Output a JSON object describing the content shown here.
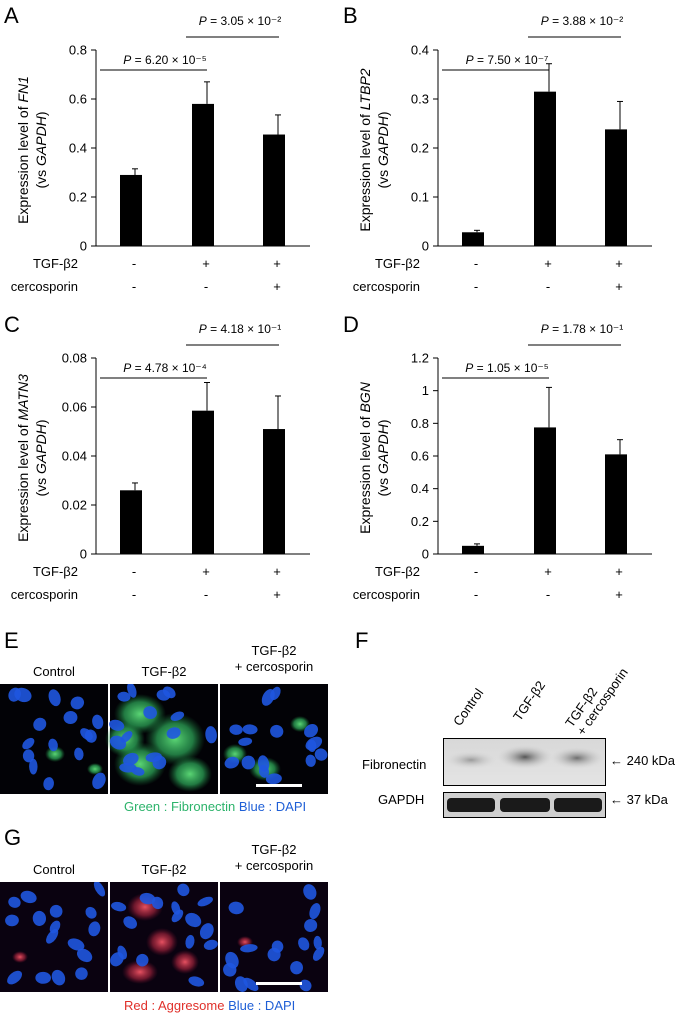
{
  "panels": {
    "a": "A",
    "b": "B",
    "c": "C",
    "d": "D",
    "e": "E",
    "f": "F",
    "g": "G"
  },
  "chart_data": [
    {
      "type": "bar",
      "panel": "A",
      "categories": [
        "control",
        "TGF-β2",
        "TGF-β2 + cercosporin"
      ],
      "values": [
        0.29,
        0.58,
        0.455
      ],
      "errors": [
        0.025,
        0.09,
        0.08
      ],
      "ylabel_prefix": "Expression level of ",
      "ylabel_gene": "FN1",
      "ylabel_line2_prefix": "(vs ",
      "ylabel_line2_gene": "GAPDH",
      "ylabel_line2_suffix": ")",
      "ylim": [
        0,
        0.8
      ],
      "yticks": [
        "0",
        "0.2",
        "0.4",
        "0.6",
        "0.8"
      ],
      "ytick_values": [
        0,
        0.2,
        0.4,
        0.6,
        0.8
      ],
      "pvalues": [
        "P = 6.20 × 10⁻⁵",
        "P = 3.05 × 10⁻²"
      ],
      "treatment_rows": [
        {
          "label": "TGF-β2",
          "marks": [
            "-",
            "+",
            "+"
          ]
        },
        {
          "label": "cercosporin",
          "marks": [
            "-",
            "-",
            "+"
          ]
        }
      ]
    },
    {
      "type": "bar",
      "panel": "B",
      "categories": [
        "control",
        "TGF-β2",
        "TGF-β2 + cercosporin"
      ],
      "values": [
        0.028,
        0.315,
        0.238
      ],
      "errors": [
        0.004,
        0.057,
        0.057
      ],
      "ylabel_prefix": "Expression level of ",
      "ylabel_gene": "LTBP2",
      "ylabel_line2_prefix": "(vs ",
      "ylabel_line2_gene": "GAPDH",
      "ylabel_line2_suffix": ")",
      "ylim": [
        0,
        0.4
      ],
      "yticks": [
        "0",
        "0.1",
        "0.2",
        "0.3",
        "0.4"
      ],
      "ytick_values": [
        0,
        0.1,
        0.2,
        0.3,
        0.4
      ],
      "pvalues": [
        "P = 7.50 × 10⁻⁷",
        "P = 3.88 × 10⁻²"
      ],
      "treatment_rows": [
        {
          "label": "TGF-β2",
          "marks": [
            "-",
            "+",
            "+"
          ]
        },
        {
          "label": "cercosporin",
          "marks": [
            "-",
            "-",
            "+"
          ]
        }
      ]
    },
    {
      "type": "bar",
      "panel": "C",
      "categories": [
        "control",
        "TGF-β2",
        "TGF-β2 + cercosporin"
      ],
      "values": [
        0.026,
        0.0585,
        0.051
      ],
      "errors": [
        0.003,
        0.0115,
        0.0135
      ],
      "ylabel_prefix": "Expression level of ",
      "ylabel_gene": "MATN3",
      "ylabel_line2_prefix": "(vs ",
      "ylabel_line2_gene": "GAPDH",
      "ylabel_line2_suffix": ")",
      "ylim": [
        0,
        0.08
      ],
      "yticks": [
        "0",
        "0.02",
        "0.04",
        "0.06",
        "0.08"
      ],
      "ytick_values": [
        0,
        0.02,
        0.04,
        0.06,
        0.08
      ],
      "pvalues": [
        "P = 4.78 × 10⁻⁴",
        "P = 4.18 × 10⁻¹"
      ],
      "treatment_rows": [
        {
          "label": "TGF-β2",
          "marks": [
            "-",
            "+",
            "+"
          ]
        },
        {
          "label": "cercosporin",
          "marks": [
            "-",
            "-",
            "+"
          ]
        }
      ]
    },
    {
      "type": "bar",
      "panel": "D",
      "categories": [
        "control",
        "TGF-β2",
        "TGF-β2 + cercosporin"
      ],
      "values": [
        0.05,
        0.775,
        0.61
      ],
      "errors": [
        0.012,
        0.245,
        0.09
      ],
      "ylabel_prefix": "Expression level of ",
      "ylabel_gene": "BGN",
      "ylabel_line2_prefix": "(vs ",
      "ylabel_line2_gene": "GAPDH",
      "ylabel_line2_suffix": ")",
      "ylim": [
        0,
        1.2
      ],
      "yticks": [
        "0",
        "0.2",
        "0.4",
        "0.6",
        "0.8",
        "1",
        "1.2"
      ],
      "ytick_values": [
        0,
        0.2,
        0.4,
        0.6,
        0.8,
        1.0,
        1.2
      ],
      "pvalues": [
        "P = 1.05 × 10⁻⁵",
        "P = 1.78 × 10⁻¹"
      ],
      "treatment_rows": [
        {
          "label": "TGF-β2",
          "marks": [
            "-",
            "+",
            "+"
          ]
        },
        {
          "label": "cercosporin",
          "marks": [
            "-",
            "-",
            "+"
          ]
        }
      ]
    }
  ],
  "panel_e": {
    "labels": [
      "Control",
      "TGF-β2",
      "TGF-β2\n+ cercosporin"
    ],
    "caption_green": "Green : Fibronectin",
    "caption_blue": "Blue : DAPI",
    "green_color": "#2db36b",
    "blue_color": "#1f5fd6"
  },
  "panel_f": {
    "lanes": [
      "Control",
      "TGF-β2",
      "TGF-β2\n+ cercosporin"
    ],
    "rows": [
      "Fibronectin",
      "GAPDH"
    ],
    "sizes": [
      "← 240 kDa",
      "← 37 kDa"
    ]
  },
  "panel_g": {
    "labels": [
      "Control",
      "TGF-β2",
      "TGF-β2\n+ cercosporin"
    ],
    "caption_red": "Red : Aggresome",
    "caption_blue": "Blue : DAPI",
    "red_color": "#e0302a",
    "blue_color": "#1f5fd6"
  }
}
